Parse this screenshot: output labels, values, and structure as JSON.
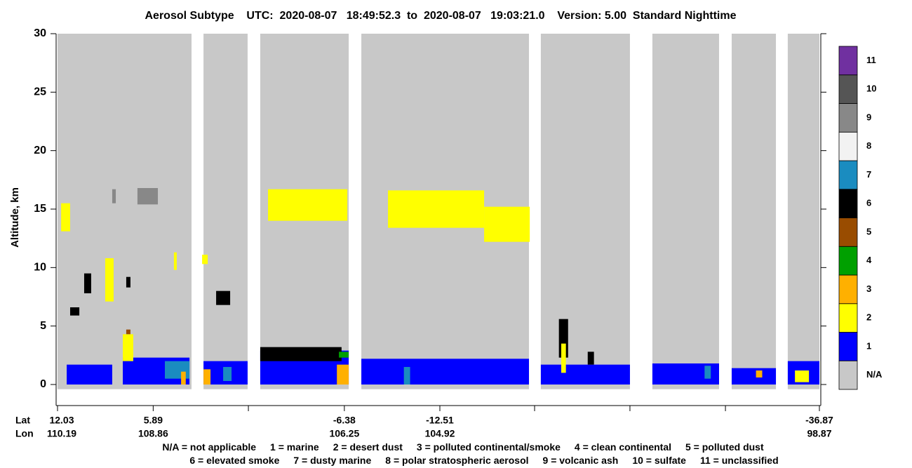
{
  "chart_data": {
    "type": "curtain",
    "title": "Aerosol Subtype    UTC:  2020-08-07   18:49:52.3  to  2020-08-07   19:03:21.0    Version: 5.00  Standard Nighttime",
    "y_label": "Altitude, km",
    "ylim": [
      -1.8,
      30
    ],
    "yticks": [
      0,
      5,
      10,
      15,
      20,
      25,
      30
    ],
    "xlim": [
      12.03,
      -36.87
    ],
    "xticks": [
      12.03,
      5.89,
      -6.38,
      -12.51,
      -36.87
    ],
    "xticks_unlabeled": [
      -0.22,
      -18.59,
      -24.71,
      -30.84
    ],
    "lat_title": "Lat",
    "lon_title": "Lon",
    "lon_labels": [
      "110.19",
      "108.86",
      "106.25",
      "104.92",
      "98.87"
    ],
    "profile_alt": [
      -0.4,
      30
    ],
    "segments": [
      [
        12.03,
        3.43
      ],
      [
        2.66,
        -0.17
      ],
      [
        -0.98,
        -6.66
      ],
      [
        -7.47,
        -18.23
      ],
      [
        -18.99,
        -24.71
      ],
      [
        -26.15,
        -30.43
      ],
      [
        -31.24,
        -34.08
      ],
      [
        -34.84,
        -36.87
      ]
    ],
    "classes": [
      {
        "label": "N/A",
        "color": "#c8c8c8"
      },
      {
        "label": "1",
        "color": "#0000ff"
      },
      {
        "label": "2",
        "color": "#ffff00"
      },
      {
        "label": "3",
        "color": "#ffb000"
      },
      {
        "label": "4",
        "color": "#00a000"
      },
      {
        "label": "5",
        "color": "#994c00"
      },
      {
        "label": "6",
        "color": "#000000"
      },
      {
        "label": "7",
        "color": "#1a8cc0"
      },
      {
        "label": "8",
        "color": "#f2f2f2"
      },
      {
        "label": "9",
        "color": "#888888"
      },
      {
        "label": "10",
        "color": "#555555"
      },
      {
        "label": "11",
        "color": "#7030a0"
      }
    ],
    "features": [
      {
        "lat": [
          11.44,
          8.52
        ],
        "alt": [
          0,
          1.7
        ],
        "class": 1
      },
      {
        "lat": [
          7.84,
          3.56
        ],
        "alt": [
          0,
          2.3
        ],
        "class": 1
      },
      {
        "lat": [
          5.14,
          3.56
        ],
        "alt": [
          0.5,
          2.0
        ],
        "class": 7
      },
      {
        "lat": [
          4.1,
          3.8
        ],
        "alt": [
          0,
          1.1
        ],
        "class": 3
      },
      {
        "lat": [
          2.66,
          -0.17
        ],
        "alt": [
          0,
          2.0
        ],
        "class": 1
      },
      {
        "lat": [
          2.66,
          2.21
        ],
        "alt": [
          0,
          1.3
        ],
        "class": 3
      },
      {
        "lat": [
          1.4,
          0.86
        ],
        "alt": [
          0.3,
          1.5
        ],
        "class": 7
      },
      {
        "lat": [
          -0.98,
          -6.66
        ],
        "alt": [
          0,
          2.9
        ],
        "class": 1
      },
      {
        "lat": [
          -0.98,
          -6.2
        ],
        "alt": [
          2.0,
          3.2
        ],
        "class": 6
      },
      {
        "lat": [
          -5.9,
          -6.66
        ],
        "alt": [
          0,
          1.7
        ],
        "class": 3
      },
      {
        "lat": [
          -6.03,
          -6.66
        ],
        "alt": [
          2.3,
          2.8
        ],
        "class": 4
      },
      {
        "lat": [
          -7.47,
          -18.23
        ],
        "alt": [
          0,
          2.2
        ],
        "class": 1
      },
      {
        "lat": [
          -10.2,
          -10.6
        ],
        "alt": [
          0,
          1.5
        ],
        "class": 7
      },
      {
        "lat": [
          -18.99,
          -24.71
        ],
        "alt": [
          0,
          1.7
        ],
        "class": 1
      },
      {
        "lat": [
          -20.15,
          -20.74
        ],
        "alt": [
          2.3,
          5.6
        ],
        "class": 6
      },
      {
        "lat": [
          -20.3,
          -20.6
        ],
        "alt": [
          1.0,
          3.5
        ],
        "class": 2
      },
      {
        "lat": [
          -22.0,
          -22.4
        ],
        "alt": [
          1.7,
          2.8
        ],
        "class": 6
      },
      {
        "lat": [
          -26.15,
          -30.43
        ],
        "alt": [
          0,
          1.8
        ],
        "class": 1
      },
      {
        "lat": [
          -29.5,
          -29.9
        ],
        "alt": [
          0.5,
          1.6
        ],
        "class": 7
      },
      {
        "lat": [
          -31.24,
          -34.08
        ],
        "alt": [
          0,
          1.4
        ],
        "class": 1
      },
      {
        "lat": [
          -32.8,
          -33.2
        ],
        "alt": [
          0.6,
          1.2
        ],
        "class": 3
      },
      {
        "lat": [
          -34.84,
          -36.87
        ],
        "alt": [
          0,
          2.0
        ],
        "class": 1
      },
      {
        "lat": [
          -35.3,
          -36.2
        ],
        "alt": [
          0.2,
          1.2
        ],
        "class": 2
      },
      {
        "lat": [
          11.8,
          11.22
        ],
        "alt": [
          13.1,
          15.5
        ],
        "class": 2
      },
      {
        "lat": [
          8.52,
          8.29
        ],
        "alt": [
          15.5,
          16.7
        ],
        "class": 9
      },
      {
        "lat": [
          6.9,
          5.59
        ],
        "alt": [
          15.4,
          16.8
        ],
        "class": 9
      },
      {
        "lat": [
          8.97,
          8.43
        ],
        "alt": [
          7.1,
          10.8
        ],
        "class": 2
      },
      {
        "lat": [
          10.32,
          9.87
        ],
        "alt": [
          7.8,
          9.5
        ],
        "class": 6
      },
      {
        "lat": [
          11.22,
          10.63
        ],
        "alt": [
          5.9,
          6.6
        ],
        "class": 6
      },
      {
        "lat": [
          7.62,
          7.35
        ],
        "alt": [
          8.3,
          9.2
        ],
        "class": 6
      },
      {
        "lat": [
          4.56,
          4.38
        ],
        "alt": [
          9.8,
          11.3
        ],
        "class": 2
      },
      {
        "lat": [
          2.75,
          2.39
        ],
        "alt": [
          10.3,
          11.1
        ],
        "class": 2
      },
      {
        "lat": [
          1.85,
          0.95
        ],
        "alt": [
          6.8,
          8.0
        ],
        "class": 6
      },
      {
        "lat": [
          -1.48,
          -6.57
        ],
        "alt": [
          14.0,
          16.7
        ],
        "class": 2
      },
      {
        "lat": [
          -9.18,
          -15.35
        ],
        "alt": [
          13.4,
          16.6
        ],
        "class": 2
      },
      {
        "lat": [
          -15.35,
          -18.28
        ],
        "alt": [
          12.2,
          15.2
        ],
        "class": 2
      },
      {
        "lat": [
          7.84,
          7.17
        ],
        "alt": [
          2.0,
          4.3
        ],
        "class": 2
      },
      {
        "lat": [
          7.62,
          7.35
        ],
        "alt": [
          4.3,
          4.7
        ],
        "class": 5
      }
    ],
    "notes": [
      [
        "N/A = not applicable",
        "1 = marine",
        "2 = desert dust",
        "3 = polluted continental/smoke",
        "4 = clean continental",
        "5 = polluted dust"
      ],
      [
        "6 = elevated smoke",
        "7 = dusty marine",
        "8 = polar stratospheric aerosol",
        "9 = volcanic ash",
        "10 = sulfate",
        "11 = unclassified"
      ]
    ]
  }
}
